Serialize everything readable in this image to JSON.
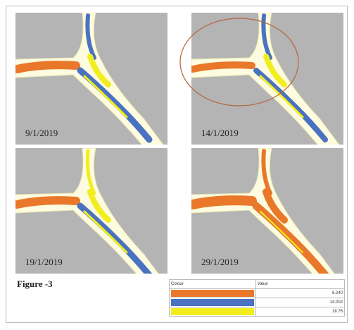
{
  "panels": [
    {
      "date": "9/1/2019"
    },
    {
      "date": "14/1/2019"
    },
    {
      "date": "19/1/2019"
    },
    {
      "date": "29/1/2019"
    }
  ],
  "caption": "Figure -3",
  "legend": {
    "headers": [
      "Colour",
      "Value"
    ],
    "rows": [
      {
        "color": "#e9782a",
        "value": "6.240"
      },
      {
        "color": "#4a72c0",
        "value": "14.002"
      },
      {
        "color": "#f2ee1e",
        "value": "18.76"
      }
    ]
  }
}
